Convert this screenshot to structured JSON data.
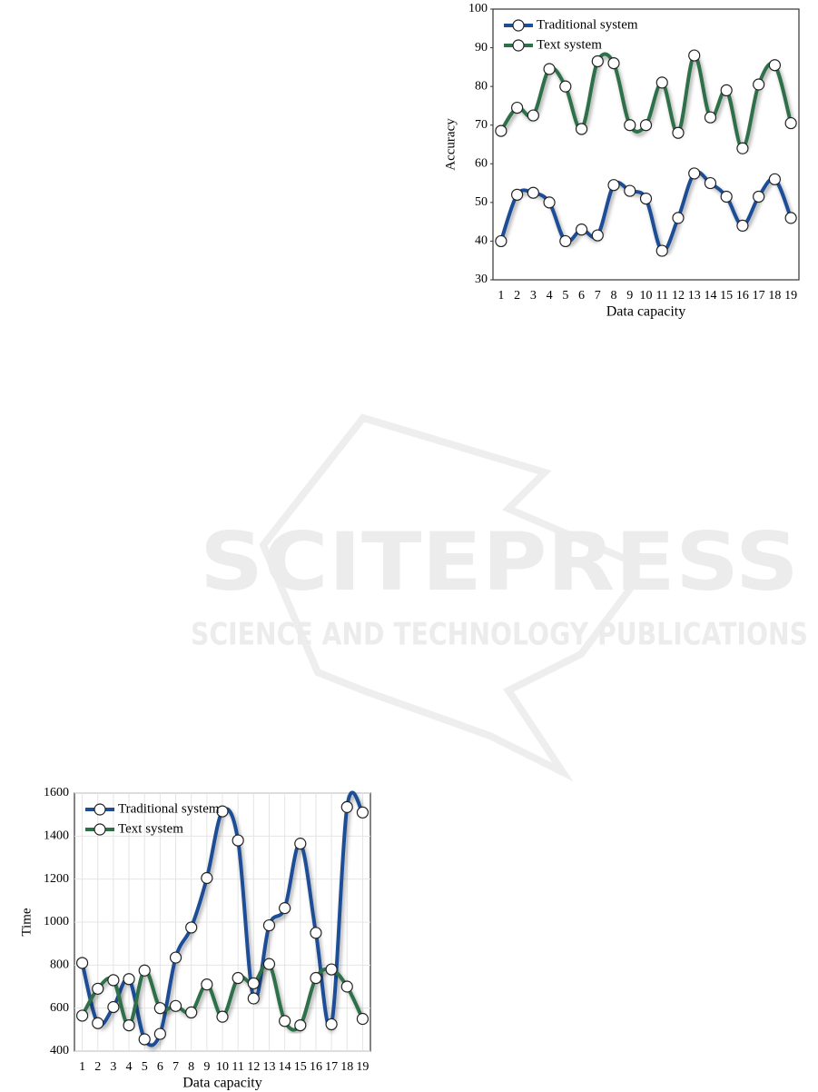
{
  "watermark": {
    "title": "SCITEPRESS",
    "subtitle": "SCIENCE AND TECHNOLOGY PUBLICATIONS"
  },
  "chart_data": [
    {
      "type": "line",
      "x_label": "Data capacity",
      "y_label": "Accuracy",
      "categories": [
        "1",
        "2",
        "3",
        "4",
        "5",
        "6",
        "7",
        "8",
        "9",
        "10",
        "11",
        "12",
        "13",
        "14",
        "15",
        "16",
        "17",
        "18",
        "19"
      ],
      "series": [
        {
          "name": "Traditional system",
          "color": "#1f4e96",
          "values": [
            40,
            52,
            52.5,
            50,
            40,
            43,
            41.5,
            54.5,
            53,
            51,
            37.5,
            46,
            57.5,
            55,
            51.5,
            44,
            51.5,
            56,
            46
          ]
        },
        {
          "name": "Text system",
          "color": "#2e7048",
          "values": [
            68.5,
            74.5,
            72.5,
            84.5,
            80,
            69,
            86.5,
            86,
            70,
            70,
            81,
            68,
            88,
            72,
            79,
            64,
            80.5,
            85.5,
            70.5
          ]
        }
      ],
      "ylim": [
        30,
        100
      ],
      "yticks": [
        30,
        40,
        50,
        60,
        70,
        80,
        90,
        100
      ],
      "grid": false,
      "legend": "upper left"
    },
    {
      "type": "line",
      "x_label": "Data capacity",
      "y_label": "Time",
      "categories": [
        "1",
        "2",
        "3",
        "4",
        "5",
        "6",
        "7",
        "8",
        "9",
        "10",
        "11",
        "12",
        "13",
        "14",
        "15",
        "16",
        "17",
        "18",
        "19"
      ],
      "series": [
        {
          "name": "Traditional system",
          "color": "#1f4e96",
          "values": [
            810,
            530,
            605,
            735,
            455,
            480,
            835,
            975,
            1205,
            1515,
            1380,
            645,
            985,
            1065,
            1365,
            950,
            525,
            1535,
            1510
          ]
        },
        {
          "name": "Text system",
          "color": "#2e7048",
          "values": [
            565,
            690,
            730,
            520,
            775,
            600,
            610,
            580,
            710,
            560,
            740,
            715,
            805,
            540,
            520,
            740,
            780,
            700,
            550
          ]
        }
      ],
      "ylim": [
        400,
        1600
      ],
      "yticks": [
        400,
        600,
        800,
        1000,
        1200,
        1400,
        1600
      ],
      "grid": true,
      "legend": "upper left"
    }
  ]
}
